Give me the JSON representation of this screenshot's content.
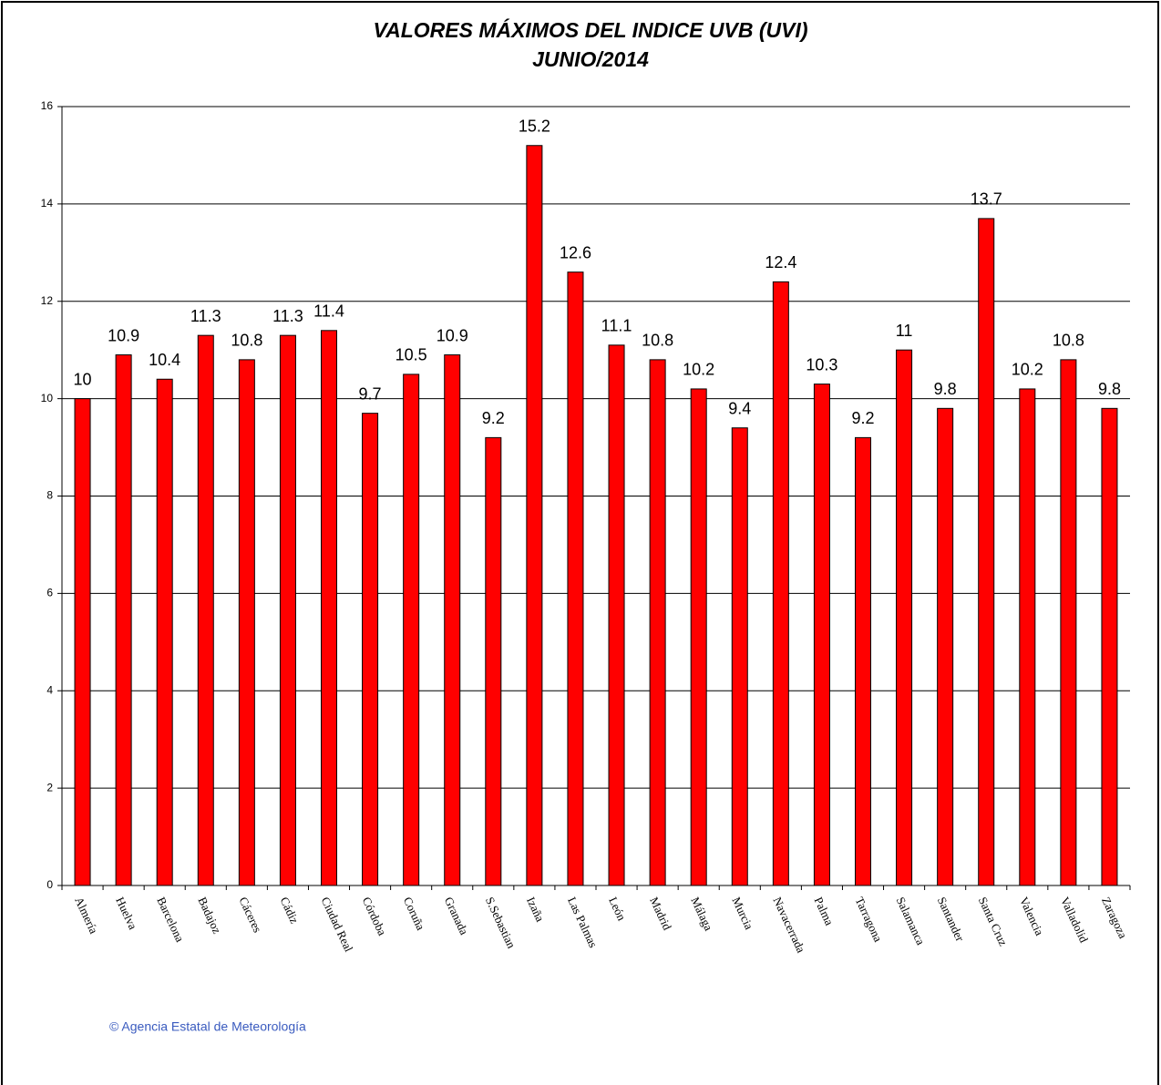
{
  "chart_data": {
    "type": "bar",
    "title": "VALORES MÁXIMOS DEL INDICE UVB (UVI)",
    "subtitle": "JUNIO/2014",
    "categories": [
      "Almería",
      "Huelva",
      "Barcelona",
      "Badajoz",
      "Cáceres",
      "Cádiz",
      "Ciudad Real",
      "Córdoba",
      "Coruña",
      "Granada",
      "S.Sebastian",
      "Izaña",
      "Las Palmas",
      "León",
      "Madrid",
      "Málaga",
      "Murcia",
      "Navacerrada",
      "Palma",
      "Tarragona",
      "Salamanca",
      "Santander",
      "Santa Cruz",
      "Valencia",
      "Valladolid",
      "Zaragoza"
    ],
    "values": [
      10,
      10.9,
      10.4,
      11.3,
      10.8,
      11.3,
      11.4,
      9.7,
      10.5,
      10.9,
      9.2,
      15.2,
      12.6,
      11.1,
      10.8,
      10.2,
      9.4,
      12.4,
      10.3,
      9.2,
      11,
      9.8,
      13.7,
      10.2,
      10.8,
      9.8
    ],
    "color": "#ff0000",
    "ylim": [
      0,
      16
    ],
    "yticks": [
      0,
      2,
      4,
      6,
      8,
      10,
      12,
      14,
      16
    ],
    "grid": true,
    "footer": "© Agencia Estatal de Meteorología"
  }
}
